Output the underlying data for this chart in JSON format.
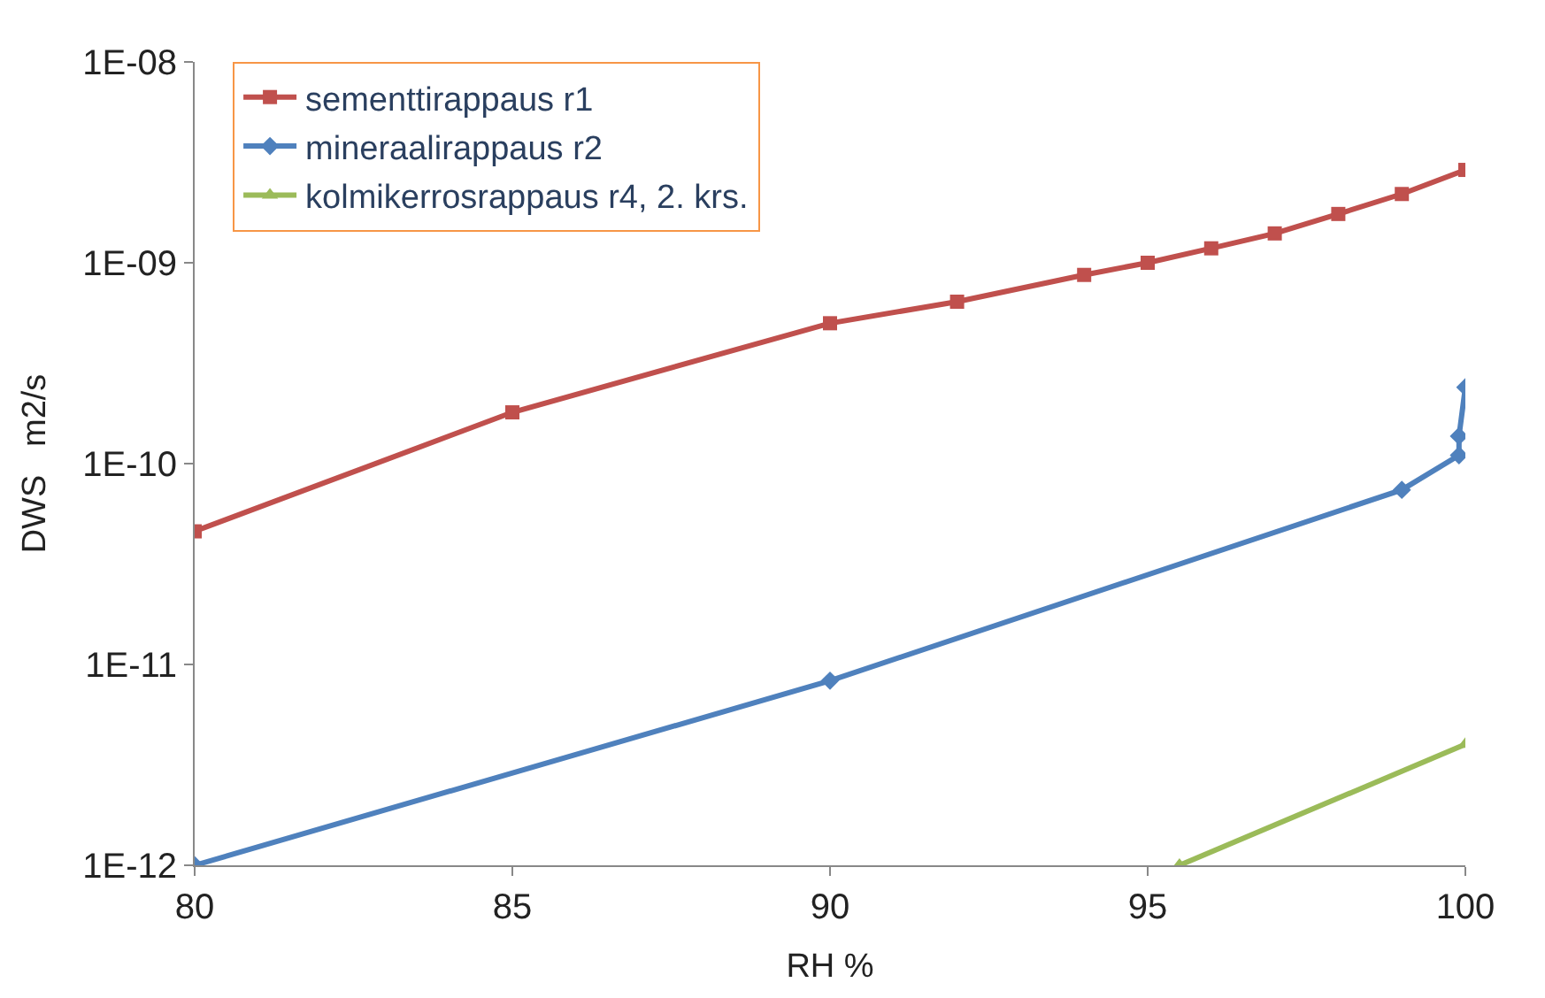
{
  "chart_data": {
    "type": "line",
    "xlabel": "RH %",
    "ylabel": "DWS   m2/s",
    "log": "y",
    "grid": false,
    "legend": "top left",
    "line_style": "solid",
    "xlim": [
      80,
      100
    ],
    "xticks": [
      80,
      85,
      90,
      95,
      100
    ],
    "ylim": [
      1e-12,
      1e-08
    ],
    "yticks": [
      {
        "value": 1e-12,
        "label": "1E-12"
      },
      {
        "value": 1e-11,
        "label": "1E-11"
      },
      {
        "value": 1e-10,
        "label": "1E-10"
      },
      {
        "value": 1e-09,
        "label": "1E-09"
      },
      {
        "value": 1e-08,
        "label": "1E-08"
      }
    ],
    "series": [
      {
        "name": "sementtirappaus r1",
        "color": "#c0504d",
        "marker": "square",
        "x": [
          80,
          85,
          90,
          92,
          94,
          95,
          96,
          97,
          98,
          99,
          100
        ],
        "values": [
          4.6e-11,
          1.8e-10,
          5e-10,
          6.4e-10,
          8.7e-10,
          1e-09,
          1.18e-09,
          1.4e-09,
          1.75e-09,
          2.2e-09,
          2.9e-09
        ]
      },
      {
        "name": "mineraalirappaus r2",
        "color": "#4f81bd",
        "marker": "diamond",
        "x": [
          80,
          90,
          99,
          99.9,
          99.9,
          100
        ],
        "values": [
          1e-12,
          8.3e-12,
          7.4e-11,
          1.1e-10,
          1.37e-10,
          2.4e-10
        ]
      },
      {
        "name": "kolmikerrosrappaus r4, 2. krs.",
        "color": "#9bbb59",
        "marker": "triangle",
        "x": [
          95.5,
          100
        ],
        "values": [
          1e-12,
          4e-12
        ]
      }
    ]
  }
}
